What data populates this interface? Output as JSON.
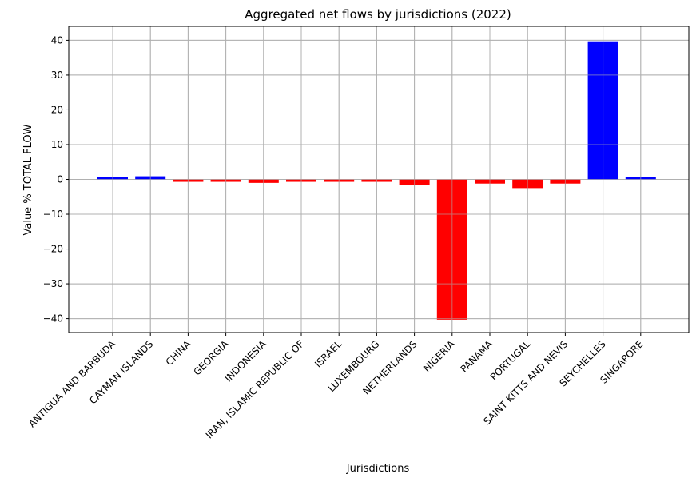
{
  "chart_data": {
    "type": "bar",
    "title": "Aggregated net flows by jurisdictions (2022)",
    "xlabel": "Jurisdictions",
    "ylabel": "Value % TOTAL FLOW",
    "categories": [
      "ANTIGUA AND BARBUDA",
      "CAYMAN ISLANDS",
      "CHINA",
      "GEORGIA",
      "INDONESIA",
      "IRAN, ISLAMIC REPUBLIC OF",
      "ISRAEL",
      "LUXEMBOURG",
      "NETHERLANDS",
      "NIGERIA",
      "PANAMA",
      "PORTUGAL",
      "SAINT KITTS AND NEVIS",
      "SEYCHELLES",
      "SINGAPORE"
    ],
    "values": [
      0.6,
      0.9,
      -0.7,
      -0.7,
      -1.0,
      -0.7,
      -0.7,
      -0.7,
      -1.7,
      -40.3,
      -1.2,
      -2.5,
      -1.2,
      39.7,
      0.6
    ],
    "yticks": [
      -40,
      -30,
      -20,
      -10,
      0,
      10,
      20,
      30,
      40
    ],
    "ylim": [
      -44,
      44
    ],
    "grid": true,
    "colors": {
      "positive": "#0000ff",
      "negative": "#ff0000",
      "grid": "#b0b0b0"
    }
  }
}
